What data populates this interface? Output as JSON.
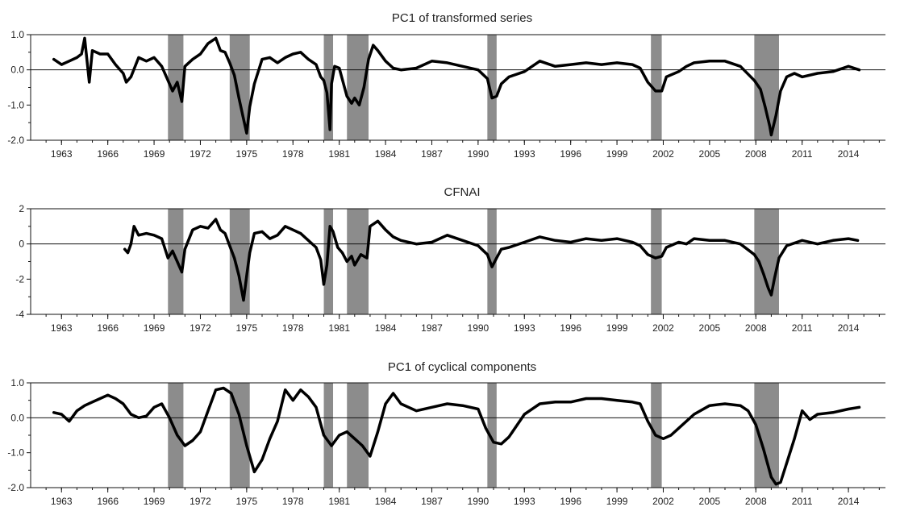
{
  "chart_data": [
    {
      "type": "line",
      "title": "PC1 of transformed series",
      "ylim": [
        -2.0,
        1.0
      ],
      "yticks": [
        1.0,
        0.0,
        -1.0,
        -2.0
      ],
      "ytick_labels": [
        "1.0",
        "0.0",
        "-1.0",
        "-2.0"
      ],
      "xticks": [
        1963,
        1966,
        1969,
        1972,
        1975,
        1978,
        1981,
        1984,
        1987,
        1990,
        1993,
        1996,
        1999,
        2002,
        2005,
        2008,
        2011,
        2014
      ],
      "recessions": [
        [
          1969.9,
          1970.9
        ],
        [
          1973.9,
          1975.2
        ],
        [
          1980.0,
          1980.6
        ],
        [
          1981.5,
          1982.9
        ],
        [
          1990.6,
          1991.2
        ],
        [
          2001.2,
          2001.9
        ],
        [
          2007.9,
          2009.5
        ]
      ],
      "series": [
        {
          "x": [
            1962.5,
            1963.0,
            1963.5,
            1964.0,
            1964.3,
            1964.5,
            1964.8,
            1965.0,
            1965.5,
            1966.0,
            1966.5,
            1967.0,
            1967.2,
            1967.5,
            1968.0,
            1968.5,
            1969.0,
            1969.5,
            1969.9,
            1970.2,
            1970.5,
            1970.8,
            1971.0,
            1971.5,
            1972.0,
            1972.5,
            1973.0,
            1973.3,
            1973.6,
            1973.9,
            1974.2,
            1974.5,
            1974.8,
            1975.0,
            1975.2,
            1975.5,
            1976.0,
            1976.5,
            1977.0,
            1977.5,
            1978.0,
            1978.5,
            1979.0,
            1979.5,
            1979.8,
            1980.0,
            1980.2,
            1980.4,
            1980.5,
            1980.7,
            1981.0,
            1981.5,
            1981.8,
            1982.0,
            1982.3,
            1982.6,
            1982.9,
            1983.2,
            1983.5,
            1984.0,
            1984.5,
            1985.0,
            1986.0,
            1987.0,
            1988.0,
            1989.0,
            1990.0,
            1990.6,
            1990.9,
            1991.2,
            1991.5,
            1992.0,
            1993.0,
            1994.0,
            1995.0,
            1996.0,
            1997.0,
            1998.0,
            1999.0,
            2000.0,
            2000.5,
            2001.0,
            2001.5,
            2001.9,
            2002.2,
            2003.0,
            2003.5,
            2004.0,
            2005.0,
            2006.0,
            2007.0,
            2007.9,
            2008.3,
            2008.6,
            2008.9,
            2009.0,
            2009.3,
            2009.6,
            2010.0,
            2010.5,
            2011.0,
            2012.0,
            2013.0,
            2014.0,
            2014.7
          ],
          "values": [
            0.3,
            0.15,
            0.25,
            0.35,
            0.45,
            0.9,
            -0.35,
            0.55,
            0.45,
            0.45,
            0.15,
            -0.1,
            -0.35,
            -0.2,
            0.35,
            0.25,
            0.35,
            0.1,
            -0.3,
            -0.6,
            -0.35,
            -0.9,
            0.1,
            0.3,
            0.45,
            0.75,
            0.9,
            0.55,
            0.5,
            0.2,
            -0.15,
            -0.8,
            -1.4,
            -1.8,
            -1.05,
            -0.4,
            0.3,
            0.35,
            0.2,
            0.35,
            0.45,
            0.5,
            0.3,
            0.15,
            -0.2,
            -0.3,
            -0.65,
            -1.7,
            -0.4,
            0.1,
            0.05,
            -0.75,
            -0.95,
            -0.8,
            -1.0,
            -0.5,
            0.3,
            0.7,
            0.55,
            0.25,
            0.05,
            0.0,
            0.05,
            0.25,
            0.2,
            0.1,
            0.0,
            -0.25,
            -0.8,
            -0.75,
            -0.4,
            -0.2,
            -0.05,
            0.25,
            0.1,
            0.15,
            0.2,
            0.15,
            0.2,
            0.15,
            0.05,
            -0.35,
            -0.6,
            -0.6,
            -0.2,
            -0.05,
            0.1,
            0.2,
            0.25,
            0.25,
            0.1,
            -0.3,
            -0.55,
            -1.05,
            -1.6,
            -1.85,
            -1.3,
            -0.6,
            -0.2,
            -0.1,
            -0.2,
            -0.1,
            -0.05,
            0.1,
            0.0
          ]
        }
      ]
    },
    {
      "type": "line",
      "title": "CFNAI",
      "ylim": [
        -4,
        2
      ],
      "yticks": [
        2,
        0,
        -2,
        -4
      ],
      "ytick_labels": [
        "2",
        "0",
        "-2",
        "-4"
      ],
      "xticks": [
        1963,
        1966,
        1969,
        1972,
        1975,
        1978,
        1981,
        1984,
        1987,
        1990,
        1993,
        1996,
        1999,
        2002,
        2005,
        2008,
        2011,
        2014
      ],
      "recessions": [
        [
          1969.9,
          1970.9
        ],
        [
          1973.9,
          1975.2
        ],
        [
          1980.0,
          1980.6
        ],
        [
          1981.5,
          1982.9
        ],
        [
          1990.6,
          1991.2
        ],
        [
          2001.2,
          2001.9
        ],
        [
          2007.9,
          2009.5
        ]
      ],
      "series": [
        {
          "x": [
            1967.1,
            1967.3,
            1967.5,
            1967.7,
            1968.0,
            1968.5,
            1969.0,
            1969.5,
            1969.9,
            1970.2,
            1970.5,
            1970.8,
            1971.0,
            1971.5,
            1972.0,
            1972.5,
            1973.0,
            1973.3,
            1973.6,
            1973.9,
            1974.2,
            1974.5,
            1974.8,
            1975.0,
            1975.2,
            1975.5,
            1976.0,
            1976.5,
            1977.0,
            1977.5,
            1978.0,
            1978.5,
            1979.0,
            1979.5,
            1979.8,
            1980.0,
            1980.2,
            1980.4,
            1980.6,
            1980.9,
            1981.2,
            1981.5,
            1981.8,
            1982.0,
            1982.4,
            1982.8,
            1983.0,
            1983.5,
            1984.0,
            1984.5,
            1985.0,
            1986.0,
            1987.0,
            1988.0,
            1989.0,
            1990.0,
            1990.6,
            1990.9,
            1991.2,
            1991.5,
            1992.0,
            1993.0,
            1994.0,
            1995.0,
            1996.0,
            1997.0,
            1998.0,
            1999.0,
            2000.0,
            2000.5,
            2001.0,
            2001.5,
            2001.9,
            2002.2,
            2003.0,
            2003.5,
            2004.0,
            2005.0,
            2006.0,
            2007.0,
            2007.9,
            2008.2,
            2008.5,
            2008.8,
            2009.0,
            2009.2,
            2009.5,
            2010.0,
            2011.0,
            2012.0,
            2013.0,
            2014.0,
            2014.6
          ],
          "values": [
            -0.3,
            -0.5,
            0.0,
            1.0,
            0.5,
            0.6,
            0.5,
            0.3,
            -0.8,
            -0.4,
            -1.0,
            -1.6,
            -0.3,
            0.8,
            1.0,
            0.9,
            1.4,
            0.8,
            0.6,
            -0.1,
            -0.8,
            -1.8,
            -3.2,
            -1.8,
            -0.5,
            0.6,
            0.7,
            0.3,
            0.5,
            1.0,
            0.8,
            0.6,
            0.2,
            -0.2,
            -0.9,
            -2.3,
            -1.2,
            1.0,
            0.7,
            -0.2,
            -0.5,
            -1.0,
            -0.7,
            -1.2,
            -0.6,
            -0.8,
            1.0,
            1.3,
            0.8,
            0.4,
            0.2,
            0.0,
            0.1,
            0.5,
            0.2,
            -0.1,
            -0.6,
            -1.3,
            -0.8,
            -0.3,
            -0.2,
            0.1,
            0.4,
            0.2,
            0.1,
            0.3,
            0.2,
            0.3,
            0.1,
            -0.1,
            -0.6,
            -0.8,
            -0.7,
            -0.2,
            0.1,
            0.0,
            0.3,
            0.2,
            0.2,
            0.0,
            -0.6,
            -1.0,
            -1.7,
            -2.5,
            -2.9,
            -2.0,
            -0.8,
            -0.1,
            0.2,
            0.0,
            0.2,
            0.3,
            0.2
          ]
        }
      ]
    },
    {
      "type": "line",
      "title": "PC1 of cyclical components",
      "ylim": [
        -2.0,
        1.0
      ],
      "yticks": [
        1.0,
        0.0,
        -1.0,
        -2.0
      ],
      "ytick_labels": [
        "1.0",
        "0.0",
        "-1.0",
        "-2.0"
      ],
      "xticks": [
        1963,
        1966,
        1969,
        1972,
        1975,
        1978,
        1981,
        1984,
        1987,
        1990,
        1993,
        1996,
        1999,
        2002,
        2005,
        2008,
        2011,
        2014
      ],
      "recessions": [
        [
          1969.9,
          1970.9
        ],
        [
          1973.9,
          1975.2
        ],
        [
          1980.0,
          1980.6
        ],
        [
          1981.5,
          1982.9
        ],
        [
          1990.6,
          1991.2
        ],
        [
          2001.2,
          2001.9
        ],
        [
          2007.9,
          2009.5
        ]
      ],
      "series": [
        {
          "x": [
            1962.5,
            1963.0,
            1963.5,
            1964.0,
            1964.5,
            1965.0,
            1965.5,
            1966.0,
            1966.5,
            1967.0,
            1967.5,
            1968.0,
            1968.5,
            1969.0,
            1969.5,
            1970.0,
            1970.5,
            1971.0,
            1971.5,
            1972.0,
            1972.5,
            1973.0,
            1973.5,
            1974.0,
            1974.5,
            1975.0,
            1975.5,
            1976.0,
            1976.5,
            1977.0,
            1977.5,
            1978.0,
            1978.5,
            1979.0,
            1979.5,
            1980.0,
            1980.5,
            1981.0,
            1981.5,
            1982.0,
            1982.5,
            1983.0,
            1983.5,
            1984.0,
            1984.5,
            1985.0,
            1986.0,
            1987.0,
            1988.0,
            1989.0,
            1990.0,
            1990.5,
            1991.0,
            1991.5,
            1992.0,
            1993.0,
            1994.0,
            1995.0,
            1996.0,
            1997.0,
            1998.0,
            1999.0,
            2000.0,
            2000.5,
            2001.0,
            2001.5,
            2002.0,
            2002.5,
            2003.0,
            2004.0,
            2005.0,
            2006.0,
            2007.0,
            2007.5,
            2008.0,
            2008.5,
            2009.0,
            2009.3,
            2009.6,
            2010.0,
            2010.5,
            2011.0,
            2011.5,
            2012.0,
            2013.0,
            2014.0,
            2014.7
          ],
          "values": [
            0.15,
            0.1,
            -0.1,
            0.2,
            0.35,
            0.45,
            0.55,
            0.65,
            0.55,
            0.4,
            0.1,
            0.0,
            0.05,
            0.3,
            0.4,
            0.0,
            -0.5,
            -0.8,
            -0.65,
            -0.4,
            0.2,
            0.8,
            0.85,
            0.7,
            0.1,
            -0.8,
            -1.55,
            -1.2,
            -0.6,
            -0.1,
            0.8,
            0.5,
            0.8,
            0.6,
            0.3,
            -0.5,
            -0.8,
            -0.5,
            -0.4,
            -0.6,
            -0.8,
            -1.1,
            -0.4,
            0.4,
            0.7,
            0.4,
            0.2,
            0.3,
            0.4,
            0.35,
            0.25,
            -0.3,
            -0.7,
            -0.75,
            -0.55,
            0.1,
            0.4,
            0.45,
            0.45,
            0.55,
            0.55,
            0.5,
            0.45,
            0.4,
            -0.1,
            -0.5,
            -0.6,
            -0.5,
            -0.3,
            0.1,
            0.35,
            0.4,
            0.35,
            0.2,
            -0.2,
            -0.9,
            -1.7,
            -1.9,
            -1.85,
            -1.3,
            -0.6,
            0.2,
            -0.05,
            0.1,
            0.15,
            0.25,
            0.3
          ]
        }
      ]
    }
  ]
}
